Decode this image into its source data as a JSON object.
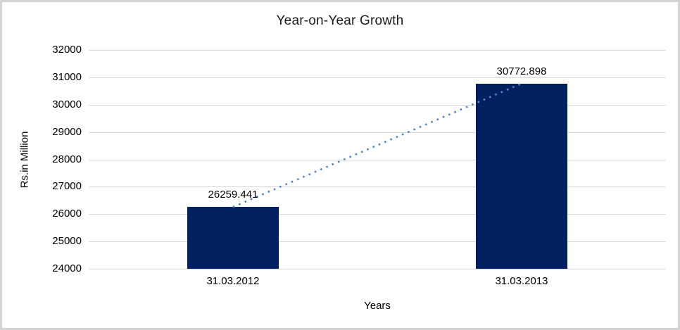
{
  "chart_data": {
    "type": "bar",
    "title": "Year-on-Year Growth",
    "xlabel": "Years",
    "ylabel": "Rs.in Million",
    "categories": [
      "31.03.2012",
      "31.03.2013"
    ],
    "series": [
      {
        "name": "Year-on-Year Growth",
        "values": [
          26259.441,
          30772.898
        ]
      }
    ],
    "data_labels": [
      "26259.441",
      "30772.898"
    ],
    "ylim": [
      24000,
      32000
    ],
    "ytick_step": 1000,
    "yticks": [
      24000,
      25000,
      26000,
      27000,
      28000,
      29000,
      30000,
      31000,
      32000
    ],
    "grid": true,
    "legend_position": "none",
    "trendline": {
      "style": "dotted",
      "connects": [
        "31.03.2012",
        "31.03.2013"
      ]
    },
    "colors": {
      "bar": "#022060",
      "trendline": "#4f87c6",
      "gridline": "#d9d9d9",
      "text": "#000000",
      "frame_border": "#d3d3d3",
      "background": "#ffffff"
    }
  }
}
